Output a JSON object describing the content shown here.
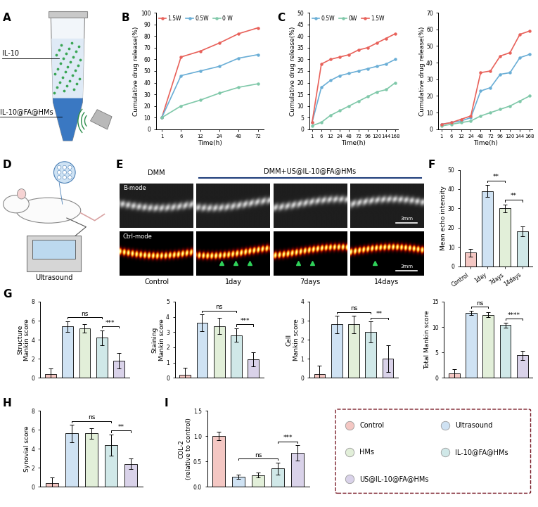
{
  "panel_labels": [
    "A",
    "B",
    "C",
    "D",
    "E",
    "F",
    "G",
    "H",
    "I"
  ],
  "panel_A": {
    "labels": [
      "IL-10",
      "IL-10@FA@HMs"
    ]
  },
  "panel_D": {
    "labels": [
      "Ultrasound"
    ]
  },
  "panel_E": {
    "title_left": "DMM",
    "title_right": "DMM+US@IL-10@FA@HMs",
    "rows": [
      "B-mode",
      "Ctrl-mode"
    ],
    "columns": [
      "Control",
      "1day",
      "7days",
      "14days"
    ],
    "scale_bar": "3mm"
  },
  "group_legend": {
    "names": [
      "Control",
      "Ultrasound",
      "HMs",
      "IL-10@FA@HMs",
      "US@IL-10@FA@HMs"
    ],
    "colors": [
      "#f4c7c3",
      "#cfe2f3",
      "#e2efd9",
      "#d0e8e8",
      "#d9d2e9"
    ]
  },
  "chart_data": [
    {
      "type": "line",
      "categories": [
        "1",
        "6",
        "12",
        "24",
        "48",
        "72"
      ],
      "xlabel": "Time(h)",
      "ylabel": "Cumulative drug release(%)",
      "ylim": [
        0,
        100
      ],
      "yticks": [
        0,
        10,
        20,
        30,
        40,
        50,
        60,
        70,
        80,
        90,
        100
      ],
      "legend": "upper left",
      "series": [
        {
          "name": "1.5W",
          "color": "#e8615a",
          "marker": "o",
          "values": [
            10,
            62,
            67,
            74,
            82,
            87
          ]
        },
        {
          "name": "0.5W",
          "color": "#6aaed6",
          "marker": "o",
          "values": [
            10,
            46,
            50,
            54,
            61,
            64
          ]
        },
        {
          "name": "0 W",
          "color": "#7fc8a9",
          "marker": "o",
          "values": [
            10,
            20,
            25,
            31,
            36,
            39
          ]
        }
      ]
    },
    {
      "type": "line",
      "categories": [
        "1",
        "6",
        "12",
        "24",
        "48",
        "72",
        "96",
        "120",
        "144",
        "168"
      ],
      "xlabel": "Time(h)",
      "ylabel": "Cumulative drug release(%)",
      "ylim": [
        0,
        50
      ],
      "yticks": [
        0,
        5,
        10,
        15,
        20,
        25,
        30,
        35,
        40,
        45,
        50
      ],
      "legend": "upper left",
      "series": [
        {
          "name": "0.5W",
          "color": "#6aaed6",
          "marker": "o",
          "values": [
            3,
            18,
            21,
            23,
            24,
            25,
            26,
            27,
            28,
            30
          ]
        },
        {
          "name": "0W",
          "color": "#7fc8a9",
          "marker": "o",
          "values": [
            1.5,
            3,
            6,
            8,
            10,
            12,
            14,
            16,
            17,
            20
          ]
        },
        {
          "name": "1.5W",
          "color": "#e8615a",
          "marker": "o",
          "values": [
            3,
            28,
            30,
            31,
            32,
            34,
            35,
            37,
            39,
            41
          ]
        }
      ]
    },
    {
      "type": "line",
      "categories": [
        "1",
        "6",
        "12",
        "24",
        "48",
        "72",
        "96",
        "120",
        "144",
        "168"
      ],
      "xlabel": "Time(h)",
      "ylabel": "Cumulative drug release(%)",
      "ylim": [
        0,
        70
      ],
      "yticks": [
        0,
        10,
        20,
        30,
        40,
        50,
        60,
        70
      ],
      "series": [
        {
          "color": "#6aaed6",
          "marker": "o",
          "values": [
            3,
            4,
            5,
            7,
            23,
            25,
            33,
            34,
            43,
            45
          ]
        },
        {
          "color": "#7fc8a9",
          "marker": "o",
          "values": [
            2,
            3,
            4,
            5,
            8,
            10,
            12,
            14,
            17,
            20
          ]
        },
        {
          "color": "#e8615a",
          "marker": "o",
          "values": [
            3,
            4,
            6,
            8,
            34,
            35,
            44,
            46,
            57,
            59
          ]
        }
      ]
    },
    {
      "type": "bar",
      "categories": [
        "Control",
        "1day",
        "7days",
        "14days"
      ],
      "ylabel": "Mean echo intensity",
      "ylim": [
        0,
        50
      ],
      "yticks": [
        0,
        10,
        20,
        30,
        40,
        50
      ],
      "values": [
        7,
        39,
        30,
        18
      ],
      "errors": [
        2,
        3,
        2,
        2.5
      ],
      "colors": [
        "#f4c7c3",
        "#cfe2f3",
        "#e2efd9",
        "#d0e8e8"
      ],
      "significance": [
        {
          "from": 1,
          "to": 2,
          "label": "**"
        },
        {
          "from": 2,
          "to": 3,
          "label": "**"
        }
      ]
    },
    {
      "type": "bar",
      "categories": [
        "Control",
        "Ultrasound",
        "HMs",
        "IL-10@FA@HMs",
        "US@IL-10@FA@HMs"
      ],
      "ylabel": "Structure\nMankin score",
      "ylim": [
        0,
        8
      ],
      "yticks": [
        0,
        2,
        4,
        6,
        8
      ],
      "tick_labels": "y",
      "values": [
        0.4,
        5.4,
        5.2,
        4.2,
        1.8
      ],
      "errors": [
        0.55,
        0.55,
        0.45,
        0.8,
        0.8
      ],
      "colors": [
        "#f4c7c3",
        "#cfe2f3",
        "#e2efd9",
        "#d0e8e8",
        "#d9d2e9"
      ],
      "significance": [
        {
          "from": 1,
          "to": 3,
          "label": "ns"
        },
        {
          "from": 3,
          "to": 4,
          "label": "***"
        }
      ]
    },
    {
      "type": "bar",
      "categories": [
        "Control",
        "Ultrasound",
        "HMs",
        "IL-10@FA@HMs",
        "US@IL-10@FA@HMs"
      ],
      "ylabel": "Staining\nMankin score",
      "ylim": [
        0,
        5
      ],
      "yticks": [
        0,
        1,
        2,
        3,
        4,
        5
      ],
      "tick_labels": "y",
      "values": [
        0.2,
        3.6,
        3.4,
        2.8,
        1.2
      ],
      "errors": [
        0.45,
        0.55,
        0.55,
        0.45,
        0.45
      ],
      "colors": [
        "#f4c7c3",
        "#cfe2f3",
        "#e2efd9",
        "#d0e8e8",
        "#d9d2e9"
      ],
      "significance": [
        {
          "from": 1,
          "to": 3,
          "label": "ns"
        },
        {
          "from": 3,
          "to": 4,
          "label": "***"
        }
      ]
    },
    {
      "type": "bar",
      "categories": [
        "Control",
        "Ultrasound",
        "HMs",
        "IL-10@FA@HMs",
        "US@IL-10@FA@HMs"
      ],
      "ylabel": "Cell\nMankin score",
      "ylim": [
        0,
        4
      ],
      "yticks": [
        0,
        1,
        2,
        3,
        4
      ],
      "tick_labels": "y",
      "values": [
        0.2,
        2.8,
        2.8,
        2.4,
        1.0
      ],
      "errors": [
        0.45,
        0.45,
        0.45,
        0.55,
        0.7
      ],
      "colors": [
        "#f4c7c3",
        "#cfe2f3",
        "#e2efd9",
        "#d0e8e8",
        "#d9d2e9"
      ],
      "significance": [
        {
          "from": 1,
          "to": 3,
          "label": "ns"
        },
        {
          "from": 3,
          "to": 4,
          "label": "**"
        }
      ]
    },
    {
      "type": "bar",
      "categories": [
        "Control",
        "Ultrasound",
        "HMs",
        "IL-10@FA@HMs",
        "US@IL-10@FA@HMs"
      ],
      "ylabel": "Total Mankin score",
      "ylim": [
        0,
        15
      ],
      "yticks": [
        0,
        5,
        10,
        15
      ],
      "tick_labels": "y",
      "values": [
        0.8,
        12.8,
        12.4,
        10.4,
        4.4
      ],
      "errors": [
        0.9,
        0.45,
        0.5,
        0.5,
        0.9
      ],
      "colors": [
        "#f4c7c3",
        "#cfe2f3",
        "#e2efd9",
        "#d0e8e8",
        "#d9d2e9"
      ],
      "significance": [
        {
          "from": 1,
          "to": 2,
          "label": "ns"
        },
        {
          "from": 3,
          "to": 4,
          "label": "****"
        }
      ]
    },
    {
      "type": "bar",
      "categories": [
        "Control",
        "Ultrasound",
        "HMs",
        "IL-10@FA@HMs",
        "US@IL-10@FA@HMs"
      ],
      "ylabel": "Synovial score",
      "ylim": [
        0,
        8
      ],
      "yticks": [
        0,
        2,
        4,
        6,
        8
      ],
      "tick_labels": "y",
      "values": [
        0.4,
        5.6,
        5.6,
        4.4,
        2.4
      ],
      "errors": [
        0.55,
        0.9,
        0.55,
        1.1,
        0.55
      ],
      "colors": [
        "#f4c7c3",
        "#cfe2f3",
        "#e2efd9",
        "#d0e8e8",
        "#d9d2e9"
      ],
      "significance": [
        {
          "from": 1,
          "to": 3,
          "label": "ns"
        },
        {
          "from": 3,
          "to": 4,
          "label": "**"
        }
      ]
    },
    {
      "type": "bar",
      "categories": [
        "Control",
        "Ultrasound",
        "HMs",
        "IL-10@FA@HMs",
        "US@IL-10@FA@HMs"
      ],
      "ylabel": "COL-2\n(relative to control)",
      "ylim": [
        0,
        1.5
      ],
      "yticks": [
        {
          "value": 0,
          "label": "0.0"
        },
        {
          "value": 0.5,
          "label": "0.5"
        },
        {
          "value": 1,
          "label": "1.0"
        },
        {
          "value": 1.5,
          "label": "1.5"
        }
      ],
      "tick_labels": "y",
      "values": [
        1.0,
        0.2,
        0.23,
        0.36,
        0.67
      ],
      "errors": [
        0.08,
        0.04,
        0.05,
        0.12,
        0.15
      ],
      "colors": [
        "#f4c7c3",
        "#cfe2f3",
        "#e2efd9",
        "#d0e8e8",
        "#d9d2e9"
      ],
      "significance": [
        {
          "from": 1,
          "to": 3,
          "label": "ns"
        },
        {
          "from": 3,
          "to": 4,
          "label": "***"
        }
      ]
    }
  ]
}
